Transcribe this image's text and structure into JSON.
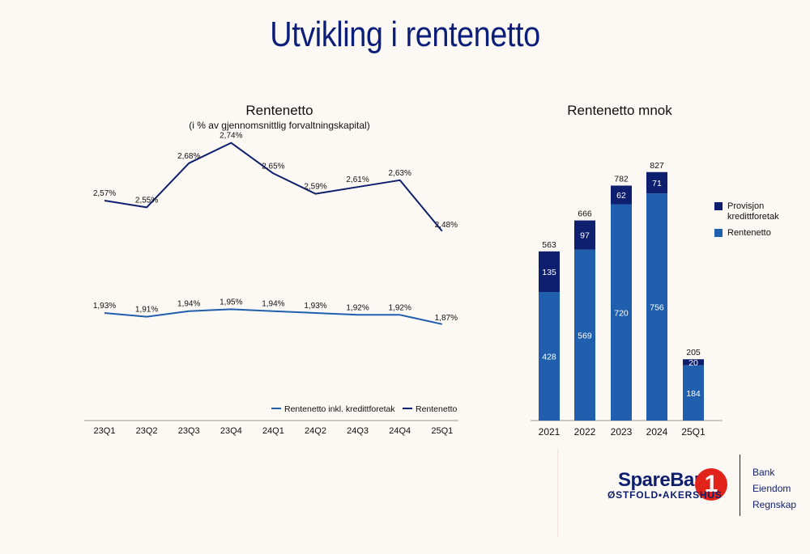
{
  "page": {
    "title": "Utvikling i rentenetto"
  },
  "chart_data": [
    {
      "type": "line",
      "title": "Rentenetto",
      "subtitle": "(i % av gjennomsnittlig forvaltningskapital)",
      "categories": [
        "23Q1",
        "23Q2",
        "23Q3",
        "23Q4",
        "24Q1",
        "24Q2",
        "24Q3",
        "24Q4",
        "25Q1"
      ],
      "series": [
        {
          "name": "Rentenetto",
          "values": [
            2.57,
            2.55,
            2.68,
            2.74,
            2.65,
            2.59,
            2.61,
            2.63,
            2.48
          ],
          "labels": [
            "2,57%",
            "2,55%",
            "2,68%",
            "2,74%",
            "2,65%",
            "2,59%",
            "2,61%",
            "2,63%",
            "2,48%"
          ],
          "color": "#0d1f6e"
        },
        {
          "name": "Rentenetto inkl. kredittforetak",
          "values": [
            1.93,
            1.91,
            1.94,
            1.95,
            1.94,
            1.93,
            1.92,
            1.92,
            1.87
          ],
          "labels": [
            "1,93%",
            "1,91%",
            "1,94%",
            "1,95%",
            "1,94%",
            "1,93%",
            "1,92%",
            "1,92%",
            "1,87%"
          ],
          "color": "#1f5fae"
        }
      ],
      "legend": "bottom-right",
      "legend_order": [
        "Rentenetto inkl. kredittforetak",
        "Rentenetto"
      ]
    },
    {
      "type": "bar",
      "stacked": true,
      "title": "Rentenetto mnok",
      "categories": [
        "2021",
        "2022",
        "2023",
        "2024",
        "25Q1"
      ],
      "series": [
        {
          "name": "Rentenetto",
          "values": [
            428,
            569,
            720,
            756,
            184
          ],
          "color": "#1f5fae"
        },
        {
          "name": "Provisjon kredittforetak",
          "values": [
            135,
            97,
            62,
            71,
            20
          ],
          "color": "#0d1f6e"
        }
      ],
      "totals": [
        563,
        666,
        782,
        827,
        205
      ],
      "legend": "right",
      "legend_items": [
        {
          "lines": [
            "Provisjon",
            "kredittforetak"
          ],
          "color": "#0d1f6e"
        },
        {
          "lines": [
            "Rentenetto"
          ],
          "color": "#1f5fae"
        }
      ]
    }
  ],
  "logo": {
    "name": "SpareBank",
    "mark": "1",
    "sub": "ØSTFOLD•AKERSHUS",
    "items": [
      "Bank",
      "Eiendom",
      "Regnskap"
    ]
  }
}
